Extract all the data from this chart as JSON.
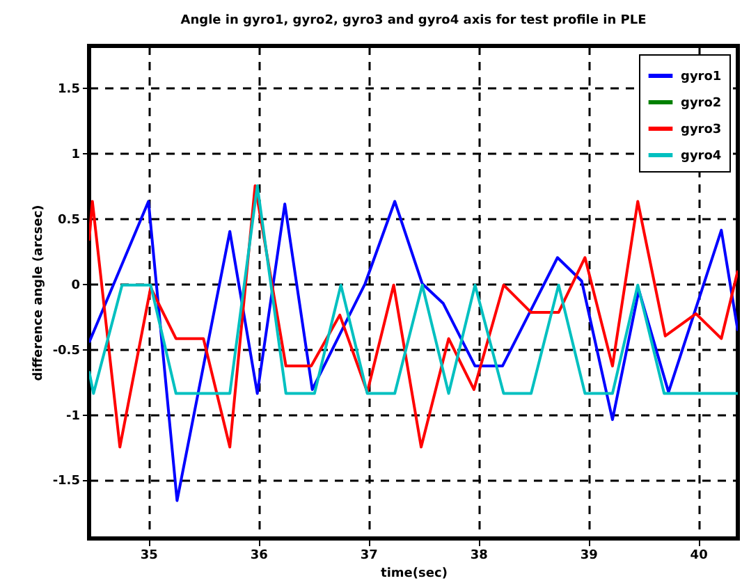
{
  "chart_data": {
    "type": "line",
    "title": "Angle in gyro1, gyro2, gyro3 and gyro4 axis for test profile in PLE",
    "xlabel": "time(sec)",
    "ylabel": "difference angle (arcsec)",
    "xlim": [
      34.46,
      40.36
    ],
    "xticks": [
      35,
      36,
      37,
      38,
      39,
      40
    ],
    "ylim": [
      -1.95,
      1.82
    ],
    "yticks": [
      -1.5,
      -1,
      -0.5,
      0,
      0.5,
      1,
      1.5
    ],
    "grid": true,
    "legend": "top right",
    "line_style": "solid",
    "marker": "none",
    "series": [
      {
        "name": "gyro1",
        "color": "#0000ff",
        "x": [
          34.46,
          35.0,
          35.26,
          35.74,
          35.99,
          36.24,
          36.49,
          36.97,
          37.24,
          37.49,
          37.68,
          37.97,
          38.22,
          38.72,
          38.94,
          39.22,
          39.46,
          39.73,
          40.21,
          40.36
        ],
        "values": [
          -0.45,
          0.63,
          -1.66,
          0.4,
          -0.84,
          0.61,
          -0.81,
          0.0,
          0.63,
          0.0,
          -0.15,
          -0.63,
          -0.63,
          0.2,
          0.02,
          -1.04,
          -0.05,
          -0.83,
          0.41,
          -0.36
        ]
      },
      {
        "name": "gyro2",
        "color": "#008000"
      },
      {
        "name": "gyro3",
        "color": "#ff0000",
        "x": [
          34.46,
          34.49,
          34.74,
          35.02,
          35.25,
          35.5,
          35.74,
          35.97,
          36.25,
          36.48,
          36.74,
          36.99,
          37.23,
          37.48,
          37.73,
          37.96,
          38.23,
          38.48,
          38.73,
          38.97,
          39.22,
          39.45,
          39.7,
          39.98,
          40.21,
          40.36
        ],
        "values": [
          0.33,
          0.63,
          -1.25,
          -0.03,
          -0.42,
          -0.42,
          -1.25,
          0.75,
          -0.63,
          -0.63,
          -0.24,
          -0.83,
          -0.01,
          -1.25,
          -0.42,
          -0.81,
          -0.01,
          -0.22,
          -0.22,
          0.2,
          -0.63,
          0.63,
          -0.4,
          -0.23,
          -0.42,
          0.1
        ]
      },
      {
        "name": "gyro4",
        "color": "#00c0c0",
        "x": [
          34.46,
          34.5,
          34.76,
          35.02,
          35.25,
          35.74,
          35.99,
          36.25,
          36.51,
          36.75,
          36.99,
          37.24,
          37.49,
          37.73,
          37.97,
          38.23,
          38.48,
          38.73,
          38.97,
          39.22,
          39.45,
          39.69,
          40.36
        ],
        "values": [
          -0.67,
          -0.84,
          -0.01,
          -0.01,
          -0.84,
          -0.84,
          0.75,
          -0.84,
          -0.84,
          -0.01,
          -0.84,
          -0.84,
          -0.01,
          -0.84,
          -0.01,
          -0.84,
          -0.84,
          -0.01,
          -0.84,
          -0.84,
          -0.01,
          -0.84,
          -0.84
        ]
      }
    ]
  }
}
